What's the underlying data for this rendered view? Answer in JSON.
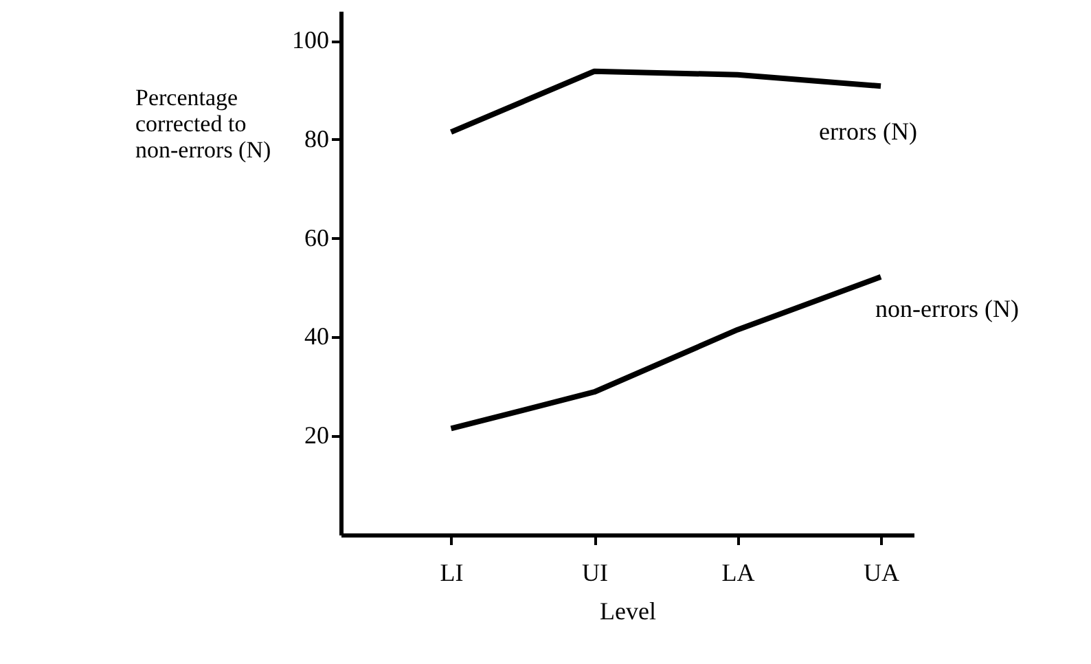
{
  "chart_data": {
    "type": "line",
    "xlabel": "Level",
    "ylabel": "Percentage\ncorrected to\nnon-errors (N)",
    "categories": [
      "LI",
      "UI",
      "LA",
      "UA"
    ],
    "series": [
      {
        "name": "errors (N)",
        "color": "#000000",
        "values": [
          81.5,
          93.8,
          93.1,
          90.8
        ]
      },
      {
        "name": "non-errors (N)",
        "color": "#000000",
        "values": [
          21.5,
          28.9,
          41.5,
          52.2
        ]
      }
    ],
    "ylim": [
      0,
      106
    ],
    "yticks": [
      20,
      40,
      60,
      80,
      100
    ],
    "line_style": "solid"
  }
}
